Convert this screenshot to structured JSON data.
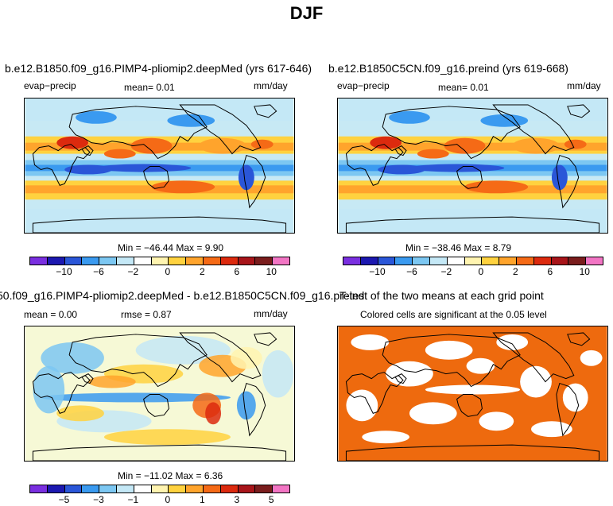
{
  "figure": {
    "title": "DJF"
  },
  "panels": [
    {
      "title": "b.e12.B1850.f09_g16.PIMP4-pliomip2.deepMed (yrs 617-646)",
      "left_label": "evap−precip",
      "center_label": "mean=   0.01",
      "right_label": "mm/day",
      "minmax": "Min = −46.44 Max =   9.90",
      "colorbar_ticks": [
        "−10",
        "−6",
        "−2",
        "0",
        "2",
        "6",
        "10"
      ]
    },
    {
      "title": "b.e12.B1850C5CN.f09_g16.preind (yrs 619-668)",
      "left_label": "evap−precip",
      "center_label": "mean=   0.01",
      "right_label": "mm/day",
      "minmax": "Min = −38.46 Max =   8.79",
      "colorbar_ticks": [
        "−10",
        "−6",
        "−2",
        "0",
        "2",
        "6",
        "10"
      ]
    },
    {
      "title": "50.f09_g16.PIMP4-pliomip2.deepMed - b.e12.B1850C5CN.f09_g16.preind",
      "left_label": "mean =   0.00",
      "center_label": "rmse =   0.87",
      "right_label": "mm/day",
      "minmax": "Min = −11.02 Max =   6.36",
      "colorbar_ticks": [
        "−5",
        "−3",
        "−1",
        "0",
        "1",
        "3",
        "5"
      ]
    },
    {
      "title": "T-test of the two means at each grid point",
      "subtitle": "Colored cells are significant at the 0.05 level",
      "significant_color": "#ee6a0e"
    }
  ],
  "colors": {
    "scale": [
      "#7a2fe0",
      "#1c18b0",
      "#2a56d8",
      "#3a9af0",
      "#7cc7f2",
      "#c4e8f6",
      "#ffffff",
      "#fff4b0",
      "#ffd23f",
      "#ffa42c",
      "#f56a16",
      "#dc2a0e",
      "#a8151a",
      "#7a1d1d",
      "#f275c4"
    ],
    "ocean_mid": "#c7e9f4",
    "ocean_pale": "#f6f9d6"
  }
}
